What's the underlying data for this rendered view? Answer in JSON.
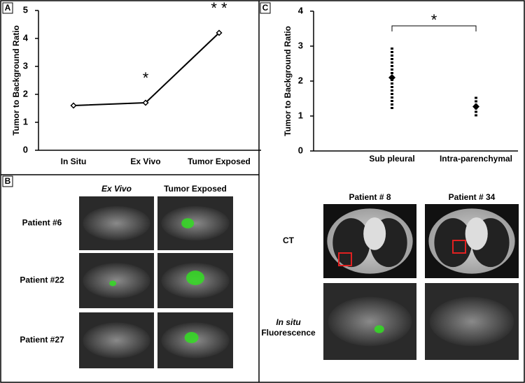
{
  "panel_labels": [
    "A",
    "B",
    "C"
  ],
  "chart_data": [
    {
      "type": "line",
      "ylabel": "Tumor to Background Ratio",
      "categories": [
        "In Situ",
        "Ex Vivo",
        "Tumor Exposed"
      ],
      "values": [
        1.6,
        1.7,
        4.2
      ],
      "annotations": [
        null,
        "*",
        "* *"
      ],
      "color": "#000000",
      "ylim": [
        0,
        5
      ],
      "yticks": [
        0,
        1,
        2,
        3,
        4,
        5
      ]
    },
    {
      "type": "errorbar",
      "ylabel": "Tumor to Background Ratio",
      "categories": [
        "Sub pleural",
        "Intra-parenchymal"
      ],
      "values": [
        2.1,
        1.27
      ],
      "errors": [
        0.9,
        0.28
      ],
      "bracket_label": "*",
      "color": "#000000",
      "ylim": [
        0,
        4
      ],
      "yticks": [
        0,
        1,
        2,
        3,
        4
      ]
    }
  ],
  "panel_b": {
    "columns": [
      "Ex Vivo",
      "Tumor Exposed"
    ],
    "rows": [
      "Patient #6",
      "Patient #22",
      "Patient #27"
    ]
  },
  "panel_c_images": {
    "columns": [
      "Patient # 8",
      "Patient # 34"
    ],
    "rows": [
      "CT",
      [
        "In situ",
        "Fluorescence"
      ]
    ]
  }
}
